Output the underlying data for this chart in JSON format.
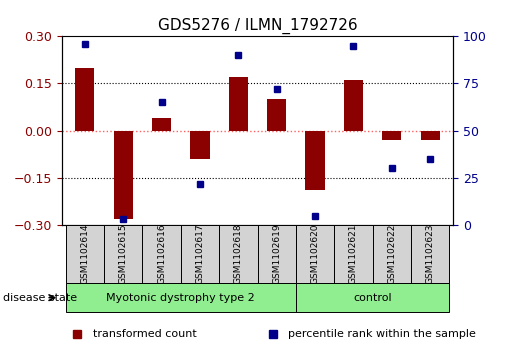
{
  "title": "GDS5276 / ILMN_1792726",
  "samples": [
    "GSM1102614",
    "GSM1102615",
    "GSM1102616",
    "GSM1102617",
    "GSM1102618",
    "GSM1102619",
    "GSM1102620",
    "GSM1102621",
    "GSM1102622",
    "GSM1102623"
  ],
  "transformed_count": [
    0.2,
    -0.28,
    0.04,
    -0.09,
    0.17,
    0.1,
    -0.19,
    0.16,
    -0.03,
    -0.03
  ],
  "percentile_rank": [
    96,
    3,
    65,
    22,
    90,
    72,
    5,
    95,
    30,
    35
  ],
  "groups": [
    {
      "label": "Myotonic dystrophy type 2",
      "indices": [
        0,
        1,
        2,
        3,
        4,
        5
      ],
      "color": "#90ee90"
    },
    {
      "label": "control",
      "indices": [
        6,
        7,
        8,
        9
      ],
      "color": "#90ee90"
    }
  ],
  "ylim_left": [
    -0.3,
    0.3
  ],
  "ylim_right": [
    0,
    100
  ],
  "yticks_left": [
    -0.3,
    -0.15,
    0,
    0.15,
    0.3
  ],
  "yticks_right": [
    0,
    25,
    50,
    75,
    100
  ],
  "bar_color": "#8B0000",
  "dot_color": "#00008B",
  "hline_color": "#FF6060",
  "hline_style": ":",
  "grid_color": "#000000",
  "grid_style": ":",
  "disease_state_label": "disease state",
  "legend_items": [
    {
      "label": "transformed count",
      "color": "#8B0000",
      "marker": "s"
    },
    {
      "label": "percentile rank within the sample",
      "color": "#00008B",
      "marker": "s"
    }
  ]
}
